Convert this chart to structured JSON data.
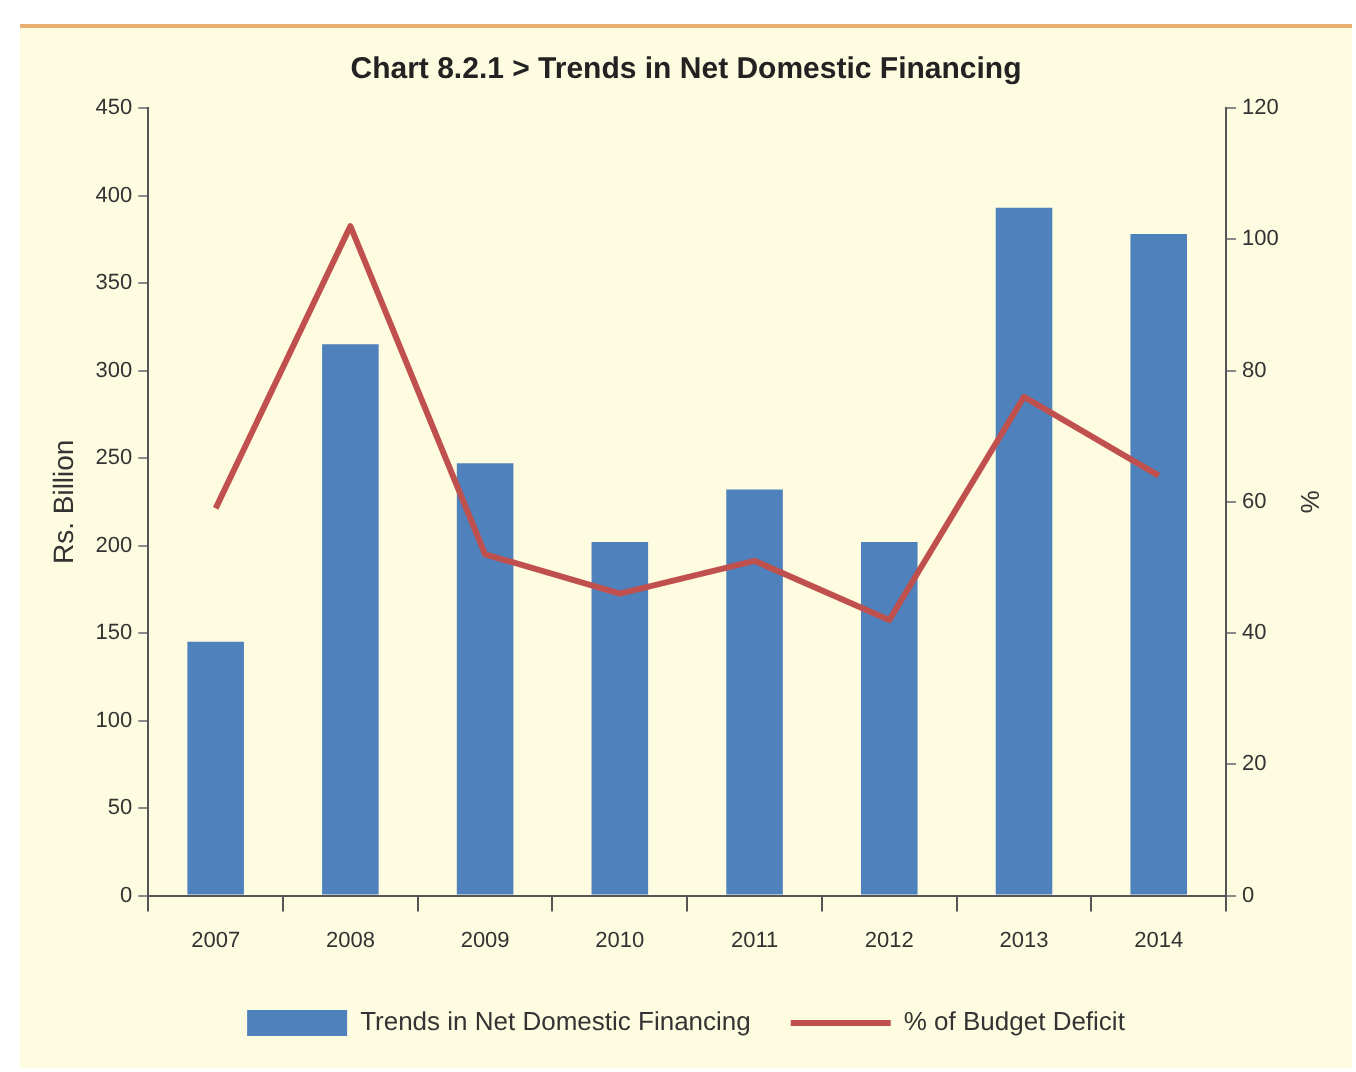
{
  "chart_data": {
    "type": "bar",
    "title": "Chart 8.2.1 > Trends in Net Domestic Financing",
    "ylabel": "Rs. Billion",
    "y2label": "%",
    "categories": [
      "2007",
      "2008",
      "2009",
      "2010",
      "2011",
      "2012",
      "2013",
      "2014"
    ],
    "series": [
      {
        "name": "Trends in Net Domestic Financing",
        "color": "#4f81bd",
        "values": [
          145,
          315,
          247,
          202,
          232,
          202,
          393,
          378
        ]
      },
      {
        "name": "% of Budget Deficit",
        "type": "line",
        "axis": "y2",
        "color": "#c0504d",
        "values": [
          59,
          102,
          52,
          46,
          51,
          42,
          76,
          64
        ]
      }
    ],
    "ylim": [
      0,
      450
    ],
    "yticks": [
      0,
      50,
      100,
      150,
      200,
      250,
      300,
      350,
      400,
      450
    ],
    "y2lim": [
      0,
      120
    ],
    "y2ticks": [
      0,
      20,
      40,
      60,
      80,
      100,
      120
    ],
    "grid": false,
    "legend": "bottom",
    "marker": "none",
    "line_style": "solid"
  }
}
